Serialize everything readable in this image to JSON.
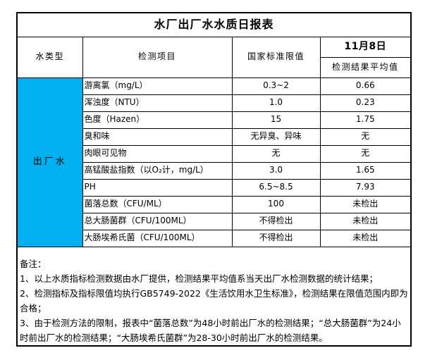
{
  "title": "水厂出厂水水质日报表",
  "header": {
    "water_type": "水类型",
    "item": "检测项目",
    "standard": "国家标准限值",
    "date": "11月8日",
    "result_avg": "检测结果平均值"
  },
  "water_type_label": "出厂水",
  "rows": [
    {
      "item": "游离氯（mg/L）",
      "standard": "0.3~2",
      "result": "0.66"
    },
    {
      "item": "浑浊度（NTU）",
      "standard": "1.0",
      "result": "0.23"
    },
    {
      "item": "色度（Hazen）",
      "standard": "15",
      "result": "1.75"
    },
    {
      "item": "臭和味",
      "standard": "无异臭、异味",
      "result": "无"
    },
    {
      "item": "肉眼可见物",
      "standard": "无",
      "result": "无"
    },
    {
      "item": "高锰酸盐指数（以O₂计，mg/L）",
      "standard": "3.0",
      "result": "1.65"
    },
    {
      "item": "PH",
      "standard": "6.5~8.5",
      "result": "7.93"
    },
    {
      "item": "菌落总数（CFU/ML）",
      "standard": "100",
      "result": "未检出"
    },
    {
      "item": "总大肠菌群（CFU/100ML）",
      "standard": "不得检出",
      "result": "未检出"
    },
    {
      "item": "大肠埃希氏菌（CFU/100ML）",
      "standard": "不得检出",
      "result": "未检出"
    }
  ],
  "notes": {
    "label": "备注：",
    "items": [
      "1、以上水质指标检测数据由水厂提供，检测结果平均值系当天出厂水检测数据的统计结果；",
      "2、检测指标及指标限值均执行GB5749-2022《生活饮用水卫生标准》，检测结果在限值范围内即为合格；",
      "3、由于检测方法的限制，报表中“菌落总数”为48小时前出厂水的检测结果；“总大肠菌群”为24小时前出厂水的检测结果；“大肠埃希氏菌群”为28-30小时前出厂水的检测结果。"
    ]
  },
  "colors": {
    "water_type_bg": "#00B0F0",
    "border": "#000000",
    "text": "#000000",
    "background": "#FFFFFF"
  }
}
